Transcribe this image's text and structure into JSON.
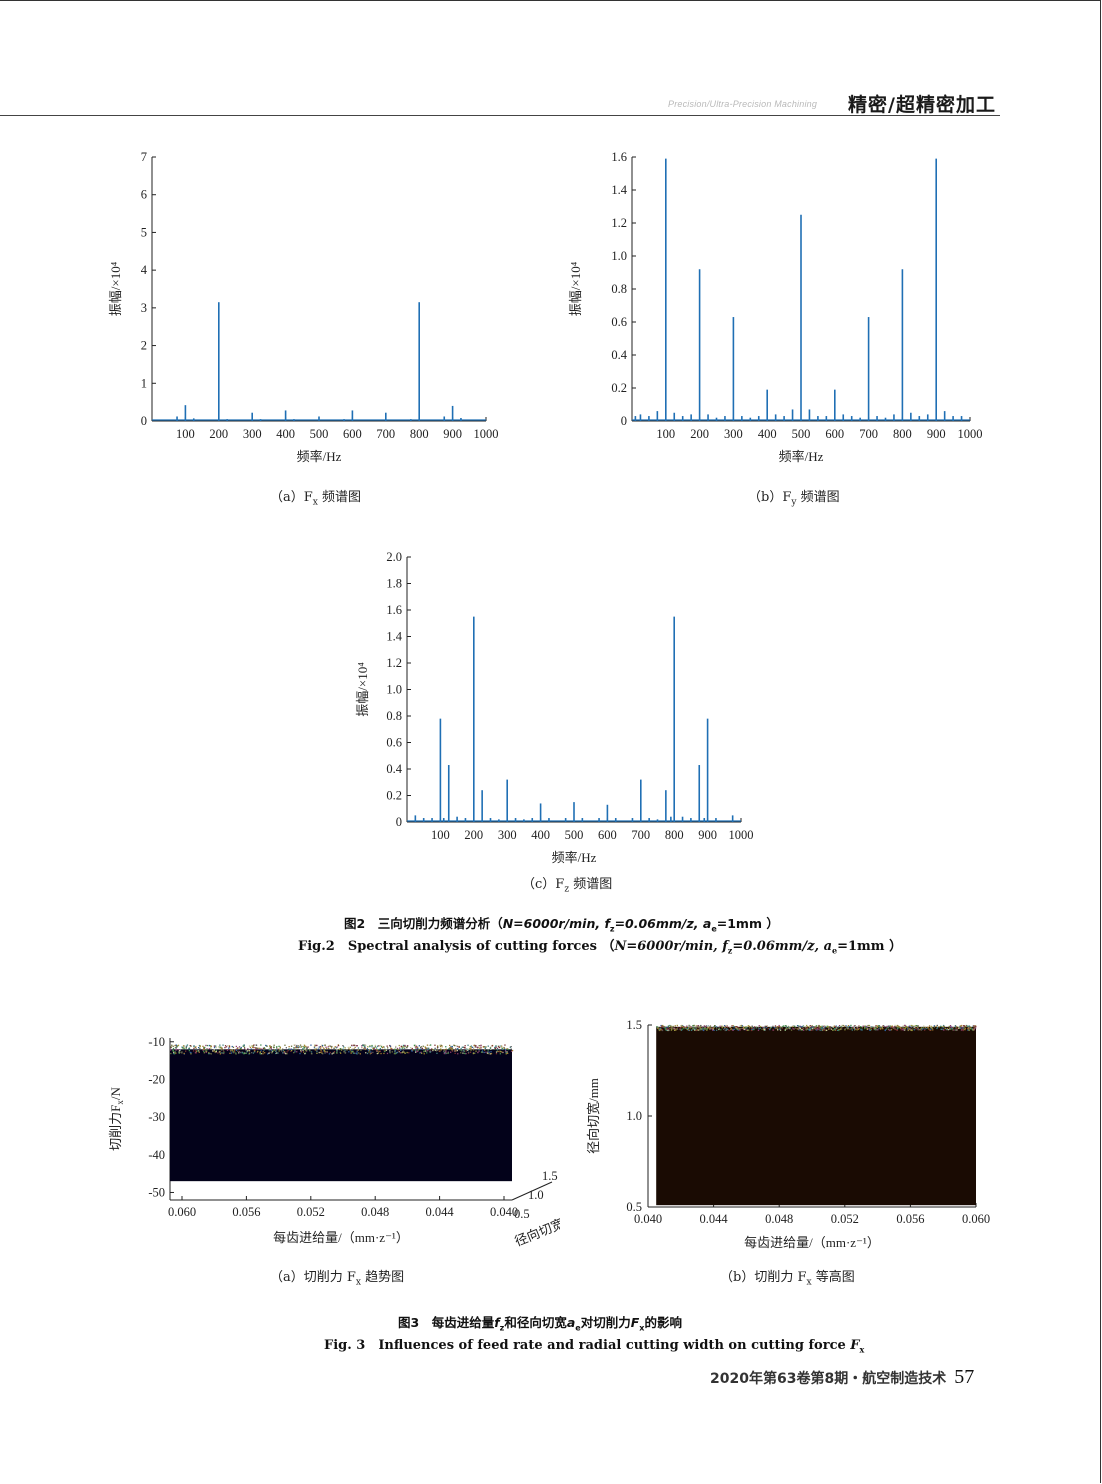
{
  "header": {
    "journal_en": "Precision/Ultra-Precision Machining",
    "journal_cn": "精密/超精密加工"
  },
  "fig2": {
    "caption_cn_prefix": "图2　三向切削力频谱分析（",
    "caption_cn_params": "N=6000r/min, f",
    "caption_cn_params2": "=0.06mm/z, a",
    "caption_cn_params3": "=1mm ）",
    "caption_en_prefix": "Fig.2　Spectral analysis of cutting forces （",
    "caption_en_params": "N=6000r/min, f",
    "caption_en_params2": "=0.06mm/z, a",
    "caption_en_params3": "=1mm ）",
    "sub_z": "z",
    "sub_e": "e"
  },
  "fig3": {
    "caption_cn": "图3　每齿进给量",
    "caption_cn_f": "f",
    "caption_cn_sub": "z",
    "caption_cn_mid": "和径向切宽",
    "caption_cn_a": "a",
    "caption_cn_sub2": "e",
    "caption_cn_mid2": "对切削力",
    "caption_cn_F": "F",
    "caption_cn_sub3": "x",
    "caption_cn_end": "的影响",
    "caption_en": "Fig. 3　Influences of feed rate and radial cutting width on cutting force ",
    "caption_en_F": "F",
    "caption_en_sub": "x"
  },
  "footer": {
    "text": "2020年第63卷第8期・航空制造技术",
    "page": "57"
  },
  "chart_data": [
    {
      "id": "fig2a",
      "type": "line",
      "caption": "（a）F",
      "caption_sub": "x",
      "caption_suffix": " 频谱图",
      "xlabel": "频率/Hz",
      "ylabel": "振幅/×10⁴",
      "xlim": [
        0,
        1000
      ],
      "ylim": [
        0,
        7
      ],
      "xticks": [
        100,
        200,
        300,
        400,
        500,
        600,
        700,
        800,
        900,
        1000
      ],
      "yticks": [
        0,
        1,
        2,
        3,
        4,
        5,
        6,
        7
      ],
      "color": "#1f6fb4",
      "peaks": [
        [
          75,
          0.12
        ],
        [
          100,
          0.42
        ],
        [
          125,
          0.07
        ],
        [
          200,
          3.15
        ],
        [
          225,
          0.05
        ],
        [
          300,
          0.22
        ],
        [
          325,
          0.05
        ],
        [
          400,
          0.28
        ],
        [
          425,
          0.05
        ],
        [
          500,
          0.12
        ],
        [
          575,
          0.05
        ],
        [
          600,
          0.28
        ],
        [
          700,
          0.22
        ],
        [
          775,
          0.05
        ],
        [
          800,
          3.15
        ],
        [
          875,
          0.12
        ],
        [
          900,
          0.4
        ],
        [
          925,
          0.08
        ]
      ]
    },
    {
      "id": "fig2b",
      "type": "line",
      "caption": "（b）F",
      "caption_sub": "y",
      "caption_suffix": " 频谱图",
      "xlabel": "频率/Hz",
      "ylabel": "振幅/×10⁴",
      "xlim": [
        0,
        1000
      ],
      "ylim": [
        0,
        1.6
      ],
      "xticks": [
        100,
        200,
        300,
        400,
        500,
        600,
        700,
        800,
        900,
        1000
      ],
      "yticks": [
        0,
        0.2,
        0.4,
        0.6,
        0.8,
        1.0,
        1.2,
        1.4,
        1.6
      ],
      "ytick_labels": [
        "0",
        "0.2",
        "0.4",
        "0.6",
        "0.8",
        "1.0",
        "1.2",
        "1.4",
        "1.6"
      ],
      "color": "#1f6fb4",
      "peaks": [
        [
          10,
          0.03
        ],
        [
          25,
          0.04
        ],
        [
          50,
          0.03
        ],
        [
          75,
          0.06
        ],
        [
          100,
          1.59
        ],
        [
          125,
          0.05
        ],
        [
          150,
          0.03
        ],
        [
          175,
          0.04
        ],
        [
          200,
          0.92
        ],
        [
          225,
          0.04
        ],
        [
          250,
          0.02
        ],
        [
          275,
          0.03
        ],
        [
          300,
          0.63
        ],
        [
          325,
          0.03
        ],
        [
          350,
          0.02
        ],
        [
          375,
          0.03
        ],
        [
          400,
          0.19
        ],
        [
          425,
          0.04
        ],
        [
          450,
          0.03
        ],
        [
          475,
          0.07
        ],
        [
          500,
          1.25
        ],
        [
          525,
          0.07
        ],
        [
          550,
          0.03
        ],
        [
          575,
          0.03
        ],
        [
          600,
          0.19
        ],
        [
          625,
          0.04
        ],
        [
          650,
          0.03
        ],
        [
          675,
          0.02
        ],
        [
          700,
          0.63
        ],
        [
          725,
          0.03
        ],
        [
          750,
          0.02
        ],
        [
          775,
          0.04
        ],
        [
          800,
          0.92
        ],
        [
          825,
          0.05
        ],
        [
          850,
          0.03
        ],
        [
          875,
          0.04
        ],
        [
          900,
          1.59
        ],
        [
          925,
          0.06
        ],
        [
          950,
          0.03
        ],
        [
          975,
          0.03
        ]
      ]
    },
    {
      "id": "fig2c",
      "type": "line",
      "caption": "（c）F",
      "caption_sub": "z",
      "caption_suffix": " 频谱图",
      "xlabel": "频率/Hz",
      "ylabel": "振幅/×10⁴",
      "xlim": [
        0,
        1000
      ],
      "ylim": [
        0,
        2.0
      ],
      "xticks": [
        100,
        200,
        300,
        400,
        500,
        600,
        700,
        800,
        900,
        1000
      ],
      "yticks": [
        0,
        0.2,
        0.4,
        0.6,
        0.8,
        1.0,
        1.2,
        1.4,
        1.6,
        1.8,
        2.0
      ],
      "ytick_labels": [
        "0",
        "0.2",
        "0.4",
        "0.6",
        "0.8",
        "1.0",
        "1.2",
        "1.4",
        "1.6",
        "1.8",
        "2.0"
      ],
      "color": "#1f6fb4",
      "peaks": [
        [
          25,
          0.05
        ],
        [
          50,
          0.03
        ],
        [
          75,
          0.03
        ],
        [
          100,
          0.78
        ],
        [
          110,
          0.03
        ],
        [
          125,
          0.43
        ],
        [
          150,
          0.04
        ],
        [
          175,
          0.03
        ],
        [
          200,
          1.55
        ],
        [
          225,
          0.24
        ],
        [
          250,
          0.03
        ],
        [
          275,
          0.02
        ],
        [
          300,
          0.32
        ],
        [
          325,
          0.03
        ],
        [
          350,
          0.02
        ],
        [
          375,
          0.03
        ],
        [
          400,
          0.14
        ],
        [
          425,
          0.03
        ],
        [
          475,
          0.03
        ],
        [
          500,
          0.15
        ],
        [
          525,
          0.03
        ],
        [
          575,
          0.03
        ],
        [
          600,
          0.13
        ],
        [
          625,
          0.03
        ],
        [
          675,
          0.03
        ],
        [
          700,
          0.32
        ],
        [
          725,
          0.03
        ],
        [
          750,
          0.02
        ],
        [
          775,
          0.24
        ],
        [
          790,
          0.04
        ],
        [
          800,
          1.55
        ],
        [
          825,
          0.04
        ],
        [
          850,
          0.03
        ],
        [
          875,
          0.43
        ],
        [
          890,
          0.03
        ],
        [
          900,
          0.78
        ],
        [
          925,
          0.03
        ],
        [
          975,
          0.05
        ]
      ]
    },
    {
      "id": "fig3a",
      "type": "heatmap",
      "caption": "（a）切削力 F",
      "caption_sub": "x",
      "caption_suffix": " 趋势图",
      "xlabel": "每齿进给量/（mm·z⁻¹）",
      "ylabel": "切削力F",
      "ylabel_sub": "x",
      "ylabel_unit": "/N",
      "zlabel": "径向切宽/mm",
      "xticks": [
        "0.060",
        "0.056",
        "0.052",
        "0.048",
        "0.044",
        "0.040"
      ],
      "yticks": [
        "-10",
        "-20",
        "-30",
        "-40",
        "-50"
      ],
      "ztick_labels": [
        "0.5",
        "1.0",
        "1.5"
      ],
      "ylim": [
        -52,
        -9
      ],
      "fill_range": [
        -47,
        -12
      ],
      "fill_color": "#03021a"
    },
    {
      "id": "fig3b",
      "type": "heatmap",
      "caption": "（b）切削力 F",
      "caption_sub": "x",
      "caption_suffix": " 等高图",
      "xlabel": "每齿进给量/（mm·z⁻¹）",
      "ylabel": "径向切宽/mm",
      "xticks": [
        "0.040",
        "0.044",
        "0.048",
        "0.052",
        "0.056",
        "0.060"
      ],
      "yticks": [
        "0.5",
        "1.0",
        "1.5"
      ],
      "xlim": [
        0.04,
        0.06
      ],
      "ylim": [
        0.5,
        1.5
      ],
      "fill_range": [
        0.51,
        1.49
      ],
      "fill_color": "#1a0b03"
    }
  ]
}
